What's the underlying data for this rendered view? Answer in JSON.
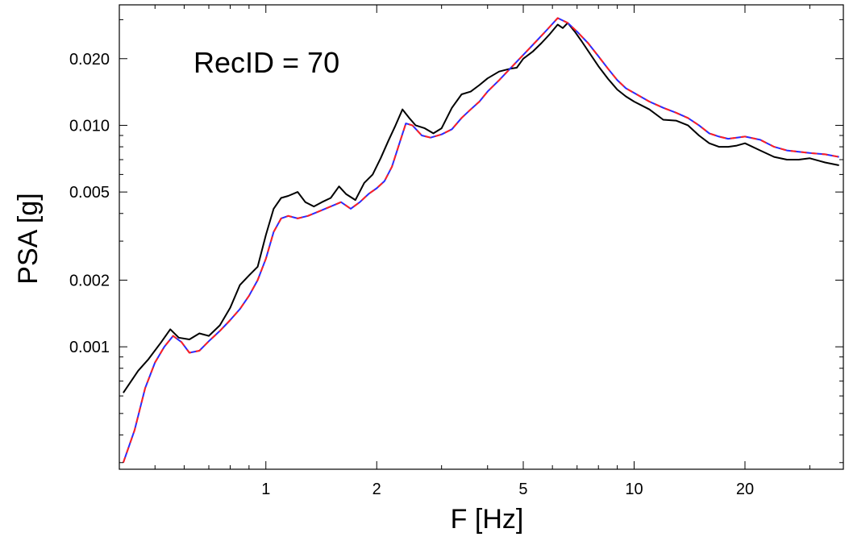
{
  "chart_data": {
    "type": "line",
    "title": "",
    "annotation": "RecID = 70",
    "xlabel": "F [Hz]",
    "ylabel": "PSA [g]",
    "xscale": "log",
    "yscale": "log",
    "xlim": [
      0.4,
      37
    ],
    "ylim": [
      0.00028,
      0.035
    ],
    "x_ticks": [
      1,
      2,
      5,
      10,
      20
    ],
    "x_tick_labels": [
      "1",
      "2",
      "5",
      "10",
      "20"
    ],
    "y_ticks": [
      0.001,
      0.002,
      0.005,
      0.01,
      0.02
    ],
    "y_tick_labels": [
      "0.001",
      "0.002",
      "0.005",
      "0.010",
      "0.020"
    ],
    "grid": false,
    "legend": "none",
    "series": [
      {
        "color": "#000000",
        "dash": "solid",
        "x": [
          0.41,
          0.45,
          0.48,
          0.52,
          0.55,
          0.58,
          0.62,
          0.66,
          0.7,
          0.75,
          0.8,
          0.85,
          0.9,
          0.95,
          1.0,
          1.05,
          1.1,
          1.15,
          1.22,
          1.28,
          1.35,
          1.42,
          1.5,
          1.58,
          1.65,
          1.75,
          1.85,
          1.95,
          2.05,
          2.15,
          2.25,
          2.35,
          2.45,
          2.55,
          2.7,
          2.85,
          3.0,
          3.2,
          3.4,
          3.6,
          3.8,
          4.0,
          4.3,
          4.6,
          4.8,
          5.0,
          5.3,
          5.6,
          5.9,
          6.2,
          6.4,
          6.6,
          6.9,
          7.2,
          7.6,
          8.0,
          8.5,
          9.0,
          9.5,
          10.0,
          11.0,
          12.0,
          13.0,
          14.0,
          15.0,
          16.0,
          17.0,
          18.0,
          19.0,
          20.0,
          22.0,
          24.0,
          26.0,
          28.0,
          30.0,
          33.0,
          36.0
        ],
        "y": [
          0.00062,
          0.00078,
          0.00088,
          0.00105,
          0.0012,
          0.0011,
          0.00108,
          0.00115,
          0.00112,
          0.00125,
          0.0015,
          0.0019,
          0.0021,
          0.0023,
          0.0032,
          0.0042,
          0.0047,
          0.0048,
          0.005,
          0.0045,
          0.0043,
          0.0045,
          0.0047,
          0.0053,
          0.0049,
          0.0046,
          0.0055,
          0.006,
          0.0071,
          0.0085,
          0.01,
          0.0118,
          0.0108,
          0.01,
          0.0097,
          0.0092,
          0.0097,
          0.012,
          0.0138,
          0.0142,
          0.0152,
          0.0163,
          0.0175,
          0.018,
          0.0182,
          0.02,
          0.0215,
          0.0235,
          0.0258,
          0.0285,
          0.0275,
          0.029,
          0.0265,
          0.024,
          0.021,
          0.0185,
          0.0162,
          0.0145,
          0.0135,
          0.0128,
          0.0118,
          0.0106,
          0.0105,
          0.01,
          0.009,
          0.0083,
          0.008,
          0.008,
          0.0081,
          0.0083,
          0.0077,
          0.0072,
          0.007,
          0.007,
          0.0071,
          0.0068,
          0.0066
        ]
      },
      {
        "color": "#2a2aff",
        "dash": "solid",
        "x": [
          0.41,
          0.44,
          0.47,
          0.5,
          0.53,
          0.56,
          0.59,
          0.62,
          0.66,
          0.7,
          0.75,
          0.8,
          0.85,
          0.9,
          0.95,
          1.0,
          1.05,
          1.1,
          1.15,
          1.22,
          1.3,
          1.4,
          1.5,
          1.6,
          1.7,
          1.8,
          1.9,
          2.0,
          2.1,
          2.2,
          2.3,
          2.4,
          2.5,
          2.65,
          2.8,
          3.0,
          3.2,
          3.4,
          3.6,
          3.8,
          4.0,
          4.3,
          4.6,
          5.0,
          5.4,
          5.8,
          6.2,
          6.6,
          7.0,
          7.5,
          8.0,
          8.5,
          9.0,
          9.5,
          10.0,
          11.0,
          12.0,
          13.0,
          14.0,
          15.0,
          16.0,
          17.0,
          18.0,
          19.0,
          20.0,
          22.0,
          24.0,
          26.0,
          28.0,
          30.0,
          33.0,
          36.0
        ],
        "y": [
          0.0003,
          0.00042,
          0.00065,
          0.00085,
          0.001,
          0.00112,
          0.00105,
          0.00094,
          0.00096,
          0.00106,
          0.00118,
          0.00132,
          0.00148,
          0.0017,
          0.002,
          0.0025,
          0.0033,
          0.0038,
          0.0039,
          0.0038,
          0.0039,
          0.0041,
          0.0043,
          0.0045,
          0.0042,
          0.0045,
          0.0049,
          0.0052,
          0.0056,
          0.0065,
          0.0082,
          0.0102,
          0.01,
          0.009,
          0.0088,
          0.0091,
          0.0096,
          0.0108,
          0.0118,
          0.0128,
          0.0142,
          0.016,
          0.018,
          0.0208,
          0.0238,
          0.027,
          0.0305,
          0.029,
          0.0265,
          0.0235,
          0.0205,
          0.018,
          0.016,
          0.0147,
          0.014,
          0.0128,
          0.012,
          0.0114,
          0.0108,
          0.01,
          0.0092,
          0.0089,
          0.0087,
          0.0088,
          0.0089,
          0.0086,
          0.008,
          0.0077,
          0.0076,
          0.0075,
          0.0074,
          0.0072
        ]
      },
      {
        "color": "#ff2020",
        "dash": "dashed",
        "x": [
          0.41,
          0.44,
          0.47,
          0.5,
          0.53,
          0.56,
          0.59,
          0.62,
          0.66,
          0.7,
          0.75,
          0.8,
          0.85,
          0.9,
          0.95,
          1.0,
          1.05,
          1.1,
          1.15,
          1.22,
          1.3,
          1.4,
          1.5,
          1.6,
          1.7,
          1.8,
          1.9,
          2.0,
          2.1,
          2.2,
          2.3,
          2.4,
          2.5,
          2.65,
          2.8,
          3.0,
          3.2,
          3.4,
          3.6,
          3.8,
          4.0,
          4.3,
          4.6,
          5.0,
          5.4,
          5.8,
          6.2,
          6.6,
          7.0,
          7.5,
          8.0,
          8.5,
          9.0,
          9.5,
          10.0,
          11.0,
          12.0,
          13.0,
          14.0,
          15.0,
          16.0,
          17.0,
          18.0,
          19.0,
          20.0,
          22.0,
          24.0,
          26.0,
          28.0,
          30.0,
          33.0,
          36.0
        ],
        "y": [
          0.0003,
          0.00042,
          0.00065,
          0.00085,
          0.001,
          0.00112,
          0.00105,
          0.00094,
          0.00096,
          0.00106,
          0.00118,
          0.00132,
          0.00148,
          0.0017,
          0.002,
          0.0025,
          0.0033,
          0.0038,
          0.0039,
          0.0038,
          0.0039,
          0.0041,
          0.0043,
          0.0045,
          0.0042,
          0.0045,
          0.0049,
          0.0052,
          0.0056,
          0.0065,
          0.0082,
          0.0102,
          0.01,
          0.009,
          0.0088,
          0.0091,
          0.0096,
          0.0108,
          0.0118,
          0.0128,
          0.0142,
          0.016,
          0.018,
          0.0208,
          0.0238,
          0.027,
          0.0305,
          0.029,
          0.0265,
          0.0235,
          0.0205,
          0.018,
          0.016,
          0.0147,
          0.014,
          0.0128,
          0.012,
          0.0114,
          0.0108,
          0.01,
          0.0092,
          0.0089,
          0.0087,
          0.0088,
          0.0089,
          0.0086,
          0.008,
          0.0077,
          0.0076,
          0.0075,
          0.0074,
          0.0072
        ]
      }
    ]
  }
}
